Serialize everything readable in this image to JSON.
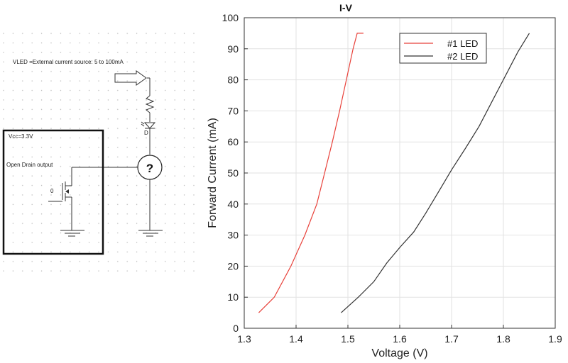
{
  "schematic": {
    "source_label": "VLED =External current source: 5 to 100mA",
    "vcc_label": "Vcc=3.3V",
    "output_label": "Open Drain output",
    "mosfet_label": "0",
    "diode_label": "D",
    "unknown_symbol": "?"
  },
  "chart_data": {
    "type": "line",
    "title": "I-V",
    "xlabel": "Voltage (V)",
    "ylabel": "Forward Current (mA)",
    "xlim": [
      1.3,
      1.9
    ],
    "ylim": [
      0,
      100
    ],
    "xticks": [
      "1.3",
      "1.4",
      "1.5",
      "1.6",
      "1.7",
      "1.8",
      "1.9"
    ],
    "yticks": [
      "0",
      "10",
      "20",
      "30",
      "40",
      "50",
      "60",
      "70",
      "80",
      "90",
      "100"
    ],
    "grid": true,
    "legend_position": "top-right",
    "series": [
      {
        "name": "#1 LED",
        "color": "#e8413a",
        "x": [
          1.328,
          1.358,
          1.39,
          1.417,
          1.44,
          1.455,
          1.47,
          1.484,
          1.497,
          1.51,
          1.518,
          1.53
        ],
        "y": [
          5,
          10,
          20,
          30,
          40,
          50,
          60,
          70,
          80,
          90,
          95,
          95
        ]
      },
      {
        "name": "#2 LED",
        "color": "#333333",
        "x": [
          1.487,
          1.52,
          1.55,
          1.575,
          1.6,
          1.627,
          1.65,
          1.675,
          1.7,
          1.727,
          1.753,
          1.778,
          1.803,
          1.828,
          1.85
        ],
        "y": [
          5,
          10,
          15,
          21,
          26,
          31,
          37,
          44,
          51,
          58,
          65,
          73,
          81,
          89,
          95
        ]
      }
    ]
  }
}
